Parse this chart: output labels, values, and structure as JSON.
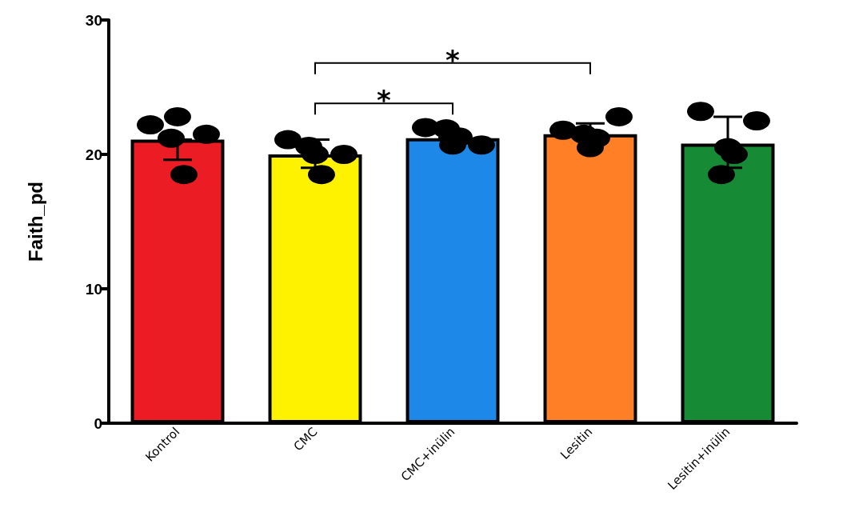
{
  "chart_data": {
    "type": "bar",
    "ylabel": "Faith_pd",
    "categories": [
      "Kontrol",
      "CMC",
      "CMC+inülin",
      "Lesitin",
      "Lesitin+inülin"
    ],
    "values": [
      21.1,
      20.0,
      21.2,
      21.5,
      20.8
    ],
    "colors": [
      "#ec1c24",
      "#fff200",
      "#1e88e8",
      "#ff7f27",
      "#178a36"
    ],
    "errors": [
      [
        19.6,
        21.1
      ],
      [
        19.0,
        21.1
      ],
      null,
      [
        21.5,
        22.3
      ],
      [
        19.0,
        22.8
      ]
    ],
    "series": [
      {
        "type": "scatter",
        "color": "#000000",
        "x": [
          "Kontrol",
          "Kontrol",
          "Kontrol",
          "Kontrol",
          "Kontrol",
          "CMC",
          "CMC",
          "CMC",
          "CMC",
          "CMC",
          "CMC+inülin",
          "CMC+inülin",
          "CMC+inülin",
          "CMC+inülin",
          "CMC+inülin",
          "Lesitin",
          "Lesitin",
          "Lesitin",
          "Lesitin",
          "Lesitin",
          "Lesitin+inülin",
          "Lesitin+inülin",
          "Lesitin+inülin",
          "Lesitin+inülin",
          "Lesitin+inülin"
        ],
        "values": [
          22.2,
          22.8,
          21.2,
          21.5,
          18.5,
          21.1,
          20.0,
          20.6,
          20.0,
          18.5,
          22.0,
          20.7,
          21.9,
          20.7,
          21.3,
          21.8,
          20.5,
          21.5,
          22.8,
          21.2,
          23.2,
          20.5,
          18.5,
          22.5,
          20.0
        ]
      }
    ],
    "annotations": [
      "*",
      "*"
    ],
    "ylim": [
      0,
      30
    ],
    "yticks": [
      0,
      10,
      20,
      30
    ],
    "grid": false,
    "marker": "circle"
  }
}
